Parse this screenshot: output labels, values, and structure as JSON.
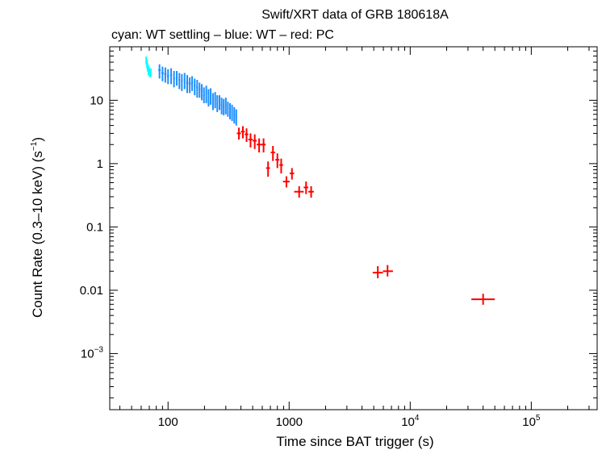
{
  "chart_data": {
    "type": "scatter",
    "title": "Swift/XRT data of GRB 180618A",
    "subtitle": "cyan: WT settling – blue: WT – red: PC",
    "xlabel": "Time since BAT trigger (s)",
    "ylabel": "Count Rate (0.3–10 keV) (s",
    "ylabel_sup": "−1",
    "ylabel_close": ")",
    "x_scale": "log",
    "y_scale": "log",
    "xlim": [
      33,
      350000
    ],
    "ylim": [
      0.00013,
      70
    ],
    "x_ticks": [
      {
        "value": 100,
        "label": "100",
        "sup": ""
      },
      {
        "value": 1000,
        "label": "1000",
        "sup": ""
      },
      {
        "value": 10000,
        "label": "10",
        "sup": "4"
      },
      {
        "value": 100000,
        "label": "10",
        "sup": "5"
      }
    ],
    "y_ticks": [
      {
        "value": 10,
        "label": "10",
        "sup": ""
      },
      {
        "value": 1,
        "label": "1",
        "sup": ""
      },
      {
        "value": 0.1,
        "label": "0.1",
        "sup": ""
      },
      {
        "value": 0.01,
        "label": "0.01",
        "sup": ""
      },
      {
        "value": 0.001,
        "label": "10",
        "sup": "−3"
      }
    ],
    "series": [
      {
        "color": "#00ffff",
        "points": [
          {
            "x": 66,
            "y": 43,
            "x_lo": 65.5,
            "x_hi": 66.5,
            "y_lo": 37,
            "y_hi": 49
          },
          {
            "x": 67,
            "y": 38,
            "x_lo": 66.5,
            "x_hi": 67.5,
            "y_lo": 32,
            "y_hi": 44
          },
          {
            "x": 68,
            "y": 33,
            "x_lo": 67.5,
            "x_hi": 68.5,
            "y_lo": 28,
            "y_hi": 38
          },
          {
            "x": 69,
            "y": 30,
            "x_lo": 68.5,
            "x_hi": 69.5,
            "y_lo": 25,
            "y_hi": 35
          },
          {
            "x": 70,
            "y": 28,
            "x_lo": 69.5,
            "x_hi": 70.5,
            "y_lo": 24,
            "y_hi": 32
          },
          {
            "x": 71,
            "y": 27,
            "x_lo": 70.5,
            "x_hi": 71.5,
            "y_lo": 23,
            "y_hi": 31
          },
          {
            "x": 72,
            "y": 28,
            "x_lo": 71.5,
            "x_hi": 72.5,
            "y_lo": 24,
            "y_hi": 32
          }
        ]
      },
      {
        "color": "#1e8fff",
        "points": [
          {
            "x": 85,
            "y": 30,
            "x_lo": 83,
            "x_hi": 87,
            "y_lo": 22,
            "y_hi": 37
          },
          {
            "x": 90,
            "y": 27,
            "x_lo": 88,
            "x_hi": 92,
            "y_lo": 20,
            "y_hi": 34
          },
          {
            "x": 95,
            "y": 26,
            "x_lo": 93,
            "x_hi": 97,
            "y_lo": 19,
            "y_hi": 33
          },
          {
            "x": 100,
            "y": 24,
            "x_lo": 98,
            "x_hi": 102,
            "y_lo": 18,
            "y_hi": 31
          },
          {
            "x": 106,
            "y": 25,
            "x_lo": 104,
            "x_hi": 108,
            "y_lo": 18,
            "y_hi": 32
          },
          {
            "x": 112,
            "y": 22,
            "x_lo": 110,
            "x_hi": 114,
            "y_lo": 16,
            "y_hi": 29
          },
          {
            "x": 118,
            "y": 23,
            "x_lo": 116,
            "x_hi": 120,
            "y_lo": 17,
            "y_hi": 29
          },
          {
            "x": 124,
            "y": 21,
            "x_lo": 122,
            "x_hi": 126,
            "y_lo": 15,
            "y_hi": 27
          },
          {
            "x": 130,
            "y": 20,
            "x_lo": 128,
            "x_hi": 132,
            "y_lo": 14,
            "y_hi": 26
          },
          {
            "x": 137,
            "y": 21,
            "x_lo": 135,
            "x_hi": 139,
            "y_lo": 15,
            "y_hi": 27
          },
          {
            "x": 144,
            "y": 19,
            "x_lo": 141,
            "x_hi": 147,
            "y_lo": 13,
            "y_hi": 25
          },
          {
            "x": 151,
            "y": 18,
            "x_lo": 148,
            "x_hi": 154,
            "y_lo": 13,
            "y_hi": 23
          },
          {
            "x": 158,
            "y": 19,
            "x_lo": 155,
            "x_hi": 161,
            "y_lo": 14,
            "y_hi": 24
          },
          {
            "x": 166,
            "y": 17,
            "x_lo": 163,
            "x_hi": 169,
            "y_lo": 12,
            "y_hi": 22
          },
          {
            "x": 174,
            "y": 16,
            "x_lo": 171,
            "x_hi": 177,
            "y_lo": 11,
            "y_hi": 21
          },
          {
            "x": 182,
            "y": 15,
            "x_lo": 179,
            "x_hi": 185,
            "y_lo": 11,
            "y_hi": 19
          },
          {
            "x": 190,
            "y": 14,
            "x_lo": 187,
            "x_hi": 193,
            "y_lo": 10,
            "y_hi": 18
          },
          {
            "x": 198,
            "y": 12,
            "x_lo": 195,
            "x_hi": 201,
            "y_lo": 9,
            "y_hi": 16
          },
          {
            "x": 207,
            "y": 13,
            "x_lo": 204,
            "x_hi": 210,
            "y_lo": 9,
            "y_hi": 17
          },
          {
            "x": 216,
            "y": 11,
            "x_lo": 213,
            "x_hi": 219,
            "y_lo": 8,
            "y_hi": 15
          },
          {
            "x": 225,
            "y": 12,
            "x_lo": 222,
            "x_hi": 228,
            "y_lo": 8.5,
            "y_hi": 15.5
          },
          {
            "x": 235,
            "y": 10,
            "x_lo": 232,
            "x_hi": 238,
            "y_lo": 7,
            "y_hi": 13
          },
          {
            "x": 245,
            "y": 10.5,
            "x_lo": 242,
            "x_hi": 248,
            "y_lo": 7.5,
            "y_hi": 13.5
          },
          {
            "x": 255,
            "y": 9,
            "x_lo": 252,
            "x_hi": 258,
            "y_lo": 6.5,
            "y_hi": 12
          },
          {
            "x": 266,
            "y": 9.5,
            "x_lo": 262,
            "x_hi": 270,
            "y_lo": 7,
            "y_hi": 12
          },
          {
            "x": 277,
            "y": 8.5,
            "x_lo": 273,
            "x_hi": 281,
            "y_lo": 6,
            "y_hi": 11
          },
          {
            "x": 288,
            "y": 8,
            "x_lo": 284,
            "x_hi": 292,
            "y_lo": 5.8,
            "y_hi": 10.5
          },
          {
            "x": 300,
            "y": 8.5,
            "x_lo": 296,
            "x_hi": 304,
            "y_lo": 6,
            "y_hi": 11
          },
          {
            "x": 312,
            "y": 7.5,
            "x_lo": 308,
            "x_hi": 316,
            "y_lo": 5.5,
            "y_hi": 9.5
          },
          {
            "x": 325,
            "y": 7,
            "x_lo": 321,
            "x_hi": 329,
            "y_lo": 5,
            "y_hi": 9
          },
          {
            "x": 338,
            "y": 6.5,
            "x_lo": 334,
            "x_hi": 342,
            "y_lo": 4.7,
            "y_hi": 8.5
          },
          {
            "x": 352,
            "y": 6,
            "x_lo": 347,
            "x_hi": 357,
            "y_lo": 4.3,
            "y_hi": 7.8
          },
          {
            "x": 366,
            "y": 5.5,
            "x_lo": 361,
            "x_hi": 371,
            "y_lo": 4,
            "y_hi": 7.2
          }
        ]
      },
      {
        "color": "#ff0000",
        "points": [
          {
            "x": 385,
            "y": 3.0,
            "x_lo": 370,
            "x_hi": 400,
            "y_lo": 2.4,
            "y_hi": 3.7
          },
          {
            "x": 415,
            "y": 3.2,
            "x_lo": 400,
            "x_hi": 430,
            "y_lo": 2.5,
            "y_hi": 3.9
          },
          {
            "x": 445,
            "y": 2.9,
            "x_lo": 430,
            "x_hi": 460,
            "y_lo": 2.2,
            "y_hi": 3.6
          },
          {
            "x": 480,
            "y": 2.4,
            "x_lo": 460,
            "x_hi": 500,
            "y_lo": 1.8,
            "y_hi": 3.0
          },
          {
            "x": 520,
            "y": 2.3,
            "x_lo": 500,
            "x_hi": 540,
            "y_lo": 1.7,
            "y_hi": 2.9
          },
          {
            "x": 565,
            "y": 2.0,
            "x_lo": 540,
            "x_hi": 590,
            "y_lo": 1.5,
            "y_hi": 2.5
          },
          {
            "x": 615,
            "y": 2.0,
            "x_lo": 590,
            "x_hi": 640,
            "y_lo": 1.5,
            "y_hi": 2.5
          },
          {
            "x": 670,
            "y": 0.85,
            "x_lo": 645,
            "x_hi": 695,
            "y_lo": 0.62,
            "y_hi": 1.08
          },
          {
            "x": 735,
            "y": 1.5,
            "x_lo": 705,
            "x_hi": 765,
            "y_lo": 1.1,
            "y_hi": 1.9
          },
          {
            "x": 800,
            "y": 1.15,
            "x_lo": 770,
            "x_hi": 830,
            "y_lo": 0.85,
            "y_hi": 1.45
          },
          {
            "x": 860,
            "y": 0.95,
            "x_lo": 830,
            "x_hi": 890,
            "y_lo": 0.7,
            "y_hi": 1.2
          },
          {
            "x": 950,
            "y": 0.52,
            "x_lo": 890,
            "x_hi": 1010,
            "y_lo": 0.42,
            "y_hi": 0.63
          },
          {
            "x": 1055,
            "y": 0.7,
            "x_lo": 1010,
            "x_hi": 1100,
            "y_lo": 0.56,
            "y_hi": 0.85
          },
          {
            "x": 1210,
            "y": 0.36,
            "x_lo": 1100,
            "x_hi": 1320,
            "y_lo": 0.29,
            "y_hi": 0.44
          },
          {
            "x": 1380,
            "y": 0.42,
            "x_lo": 1320,
            "x_hi": 1440,
            "y_lo": 0.33,
            "y_hi": 0.52
          },
          {
            "x": 1520,
            "y": 0.36,
            "x_lo": 1440,
            "x_hi": 1600,
            "y_lo": 0.29,
            "y_hi": 0.44
          },
          {
            "x": 5400,
            "y": 0.019,
            "x_lo": 4900,
            "x_hi": 5950,
            "y_lo": 0.0155,
            "y_hi": 0.024
          },
          {
            "x": 6500,
            "y": 0.02,
            "x_lo": 5950,
            "x_hi": 7200,
            "y_lo": 0.0165,
            "y_hi": 0.025
          },
          {
            "x": 40000,
            "y": 0.0072,
            "x_lo": 32000,
            "x_hi": 50000,
            "y_lo": 0.0059,
            "y_hi": 0.0088
          }
        ]
      }
    ]
  }
}
